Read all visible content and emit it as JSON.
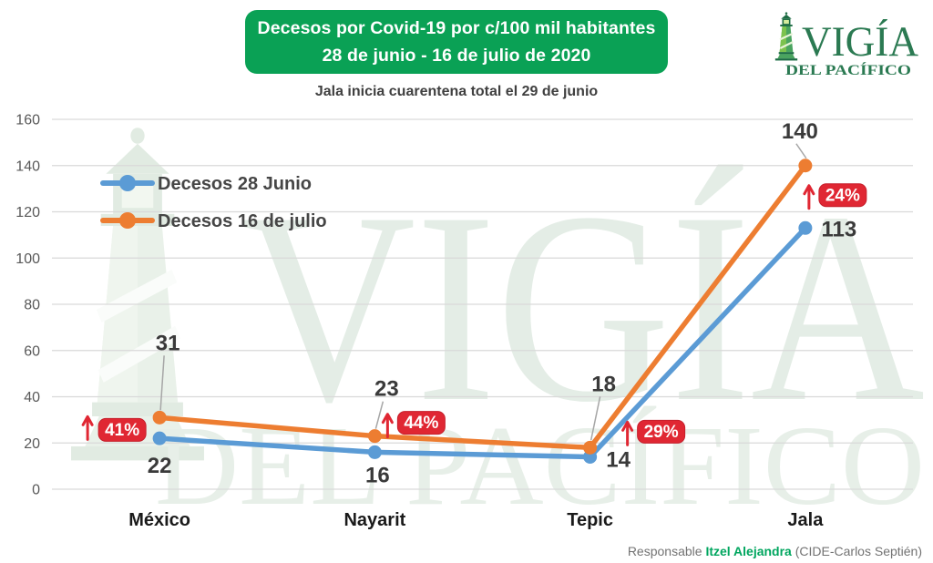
{
  "header": {
    "title_line1": "Decesos por Covid-19 por c/100 mil habitantes",
    "title_line2": "28 de junio - 16 de julio de 2020",
    "subtitle": "Jala inicia cuarentena total el 29 de junio"
  },
  "logo": {
    "name": "VIGÍA",
    "tagline": "DEL PACÍFICO"
  },
  "watermark": {
    "name": "VIGÍA",
    "tagline": "DEL PACÍFICO"
  },
  "chart_data": {
    "type": "line",
    "title": "Decesos por Covid-19 por c/100 mil habitantes, 28 de junio - 16 de julio de 2020",
    "categories": [
      "México",
      "Nayarit",
      "Tepic",
      "Jala"
    ],
    "series": [
      {
        "name": "Decesos 28 Junio",
        "color": "#5B9BD5",
        "values": [
          22,
          16,
          14,
          113
        ]
      },
      {
        "name": "Decesos 16 de julio",
        "color": "#ED7D31",
        "values": [
          31,
          23,
          18,
          140
        ]
      }
    ],
    "pct_change_labels": [
      "41%",
      "44%",
      "29%",
      "24%"
    ],
    "ylim": [
      0,
      160
    ],
    "ytick_step": 20,
    "grid": true,
    "legend_position": "top-left"
  },
  "footer": {
    "prefix": "Responsable",
    "author": "Itzel Alejandra",
    "suffix": "(CIDE-Carlos Septién)"
  },
  "colors": {
    "banner_green": "#0AA155",
    "badge_red": "#E02733",
    "badge_border": "#C51F2B",
    "arrow_red": "#E02733",
    "grid": "#D9D9D9",
    "axis_text": "#595959",
    "category_text": "#1A1A1A",
    "data_label_text": "#3A3A3A",
    "legend_text": "#464646",
    "leader_line": "#A6A6A6",
    "badge_text": "#FFFFFF",
    "logo_green": "#2B7A52",
    "footer_green": "#00A65F",
    "watermark_green": "#E4EDE6"
  }
}
